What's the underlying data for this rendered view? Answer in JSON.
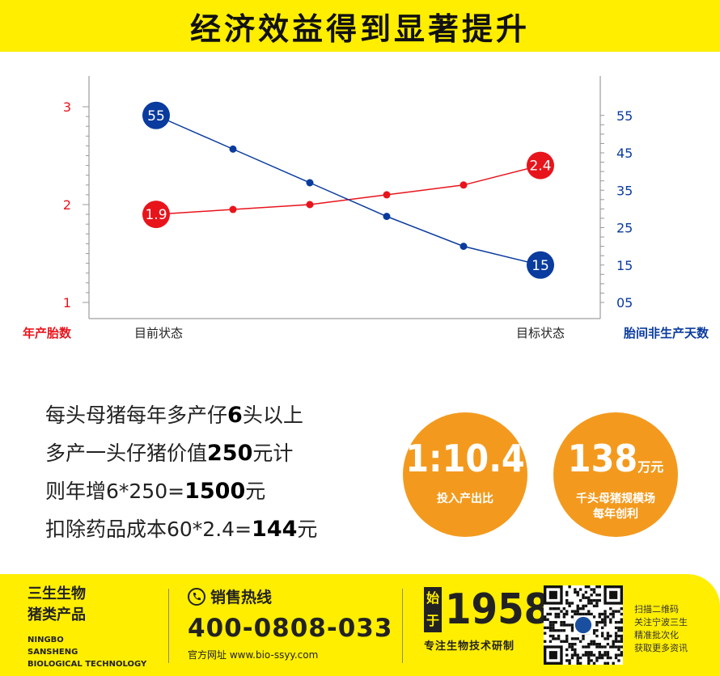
{
  "title": "经济效益得到显著提升",
  "chart_data": {
    "type": "line",
    "x_start_label": "目前状态",
    "x_end_label": "目标状态",
    "left_axis": {
      "label": "年产胎数",
      "ticks": [
        "3",
        "2",
        "1"
      ],
      "color": "#e8141c"
    },
    "right_axis": {
      "label": "胎间非生产天数",
      "ticks": [
        "55",
        "45",
        "35",
        "25",
        "15",
        "05"
      ],
      "color": "#0a3b9e"
    },
    "series": [
      {
        "axis": "left",
        "color": "#e8141c",
        "values": [
          1.9,
          1.95,
          2.0,
          2.1,
          2.2,
          2.4
        ],
        "labels": [
          "1.9",
          "",
          "",
          "",
          "",
          "2.4"
        ]
      },
      {
        "axis": "right",
        "color": "#0a3b9e",
        "values": [
          55,
          46,
          37,
          28,
          20,
          15
        ],
        "labels": [
          "55",
          "",
          "",
          "",
          "",
          "15"
        ]
      }
    ]
  },
  "stats": {
    "l1_pre": "每头母猪每年多产仔",
    "l1_num": "6",
    "l1_post": "头以上",
    "l2_pre": "多产一头仔猪价值",
    "l2_num": "250",
    "l2_post": "元计",
    "l3_pre": "则年增6*250=",
    "l3_num": "1500",
    "l3_post": "元",
    "l4_pre": "扣除药品成本60*2.4=",
    "l4_num": "144",
    "l4_post": "元"
  },
  "circles": [
    {
      "value": "1:10.4",
      "unit": "",
      "label": "投入产出比"
    },
    {
      "value": "138",
      "unit": "万元",
      "label": "千头母猪规模场\n每年创利"
    }
  ],
  "footer": {
    "brand_cn1": "三生生物",
    "brand_cn2": "猪类产品",
    "brand_en1": "NINGBO",
    "brand_en2": "SANSHENG",
    "brand_en3": "BIOLOGICAL TECHNOLOGY",
    "hotline_label": "销售热线",
    "hotline_number": "400-0808-033",
    "website": "官方网址 www.bio-ssyy.com",
    "since_label": "始\n于",
    "since_year": "1958",
    "tagline": "专注生物技术研制",
    "qr_note1": "扫描二维码",
    "qr_note2": "关注宁波三生",
    "qr_note3": "精准批次化",
    "qr_note4": "获取更多资讯"
  },
  "colors": {
    "banner": "#ffee00",
    "accent_orange": "#f39a1e",
    "red": "#e8141c",
    "blue": "#0a3b9e"
  }
}
